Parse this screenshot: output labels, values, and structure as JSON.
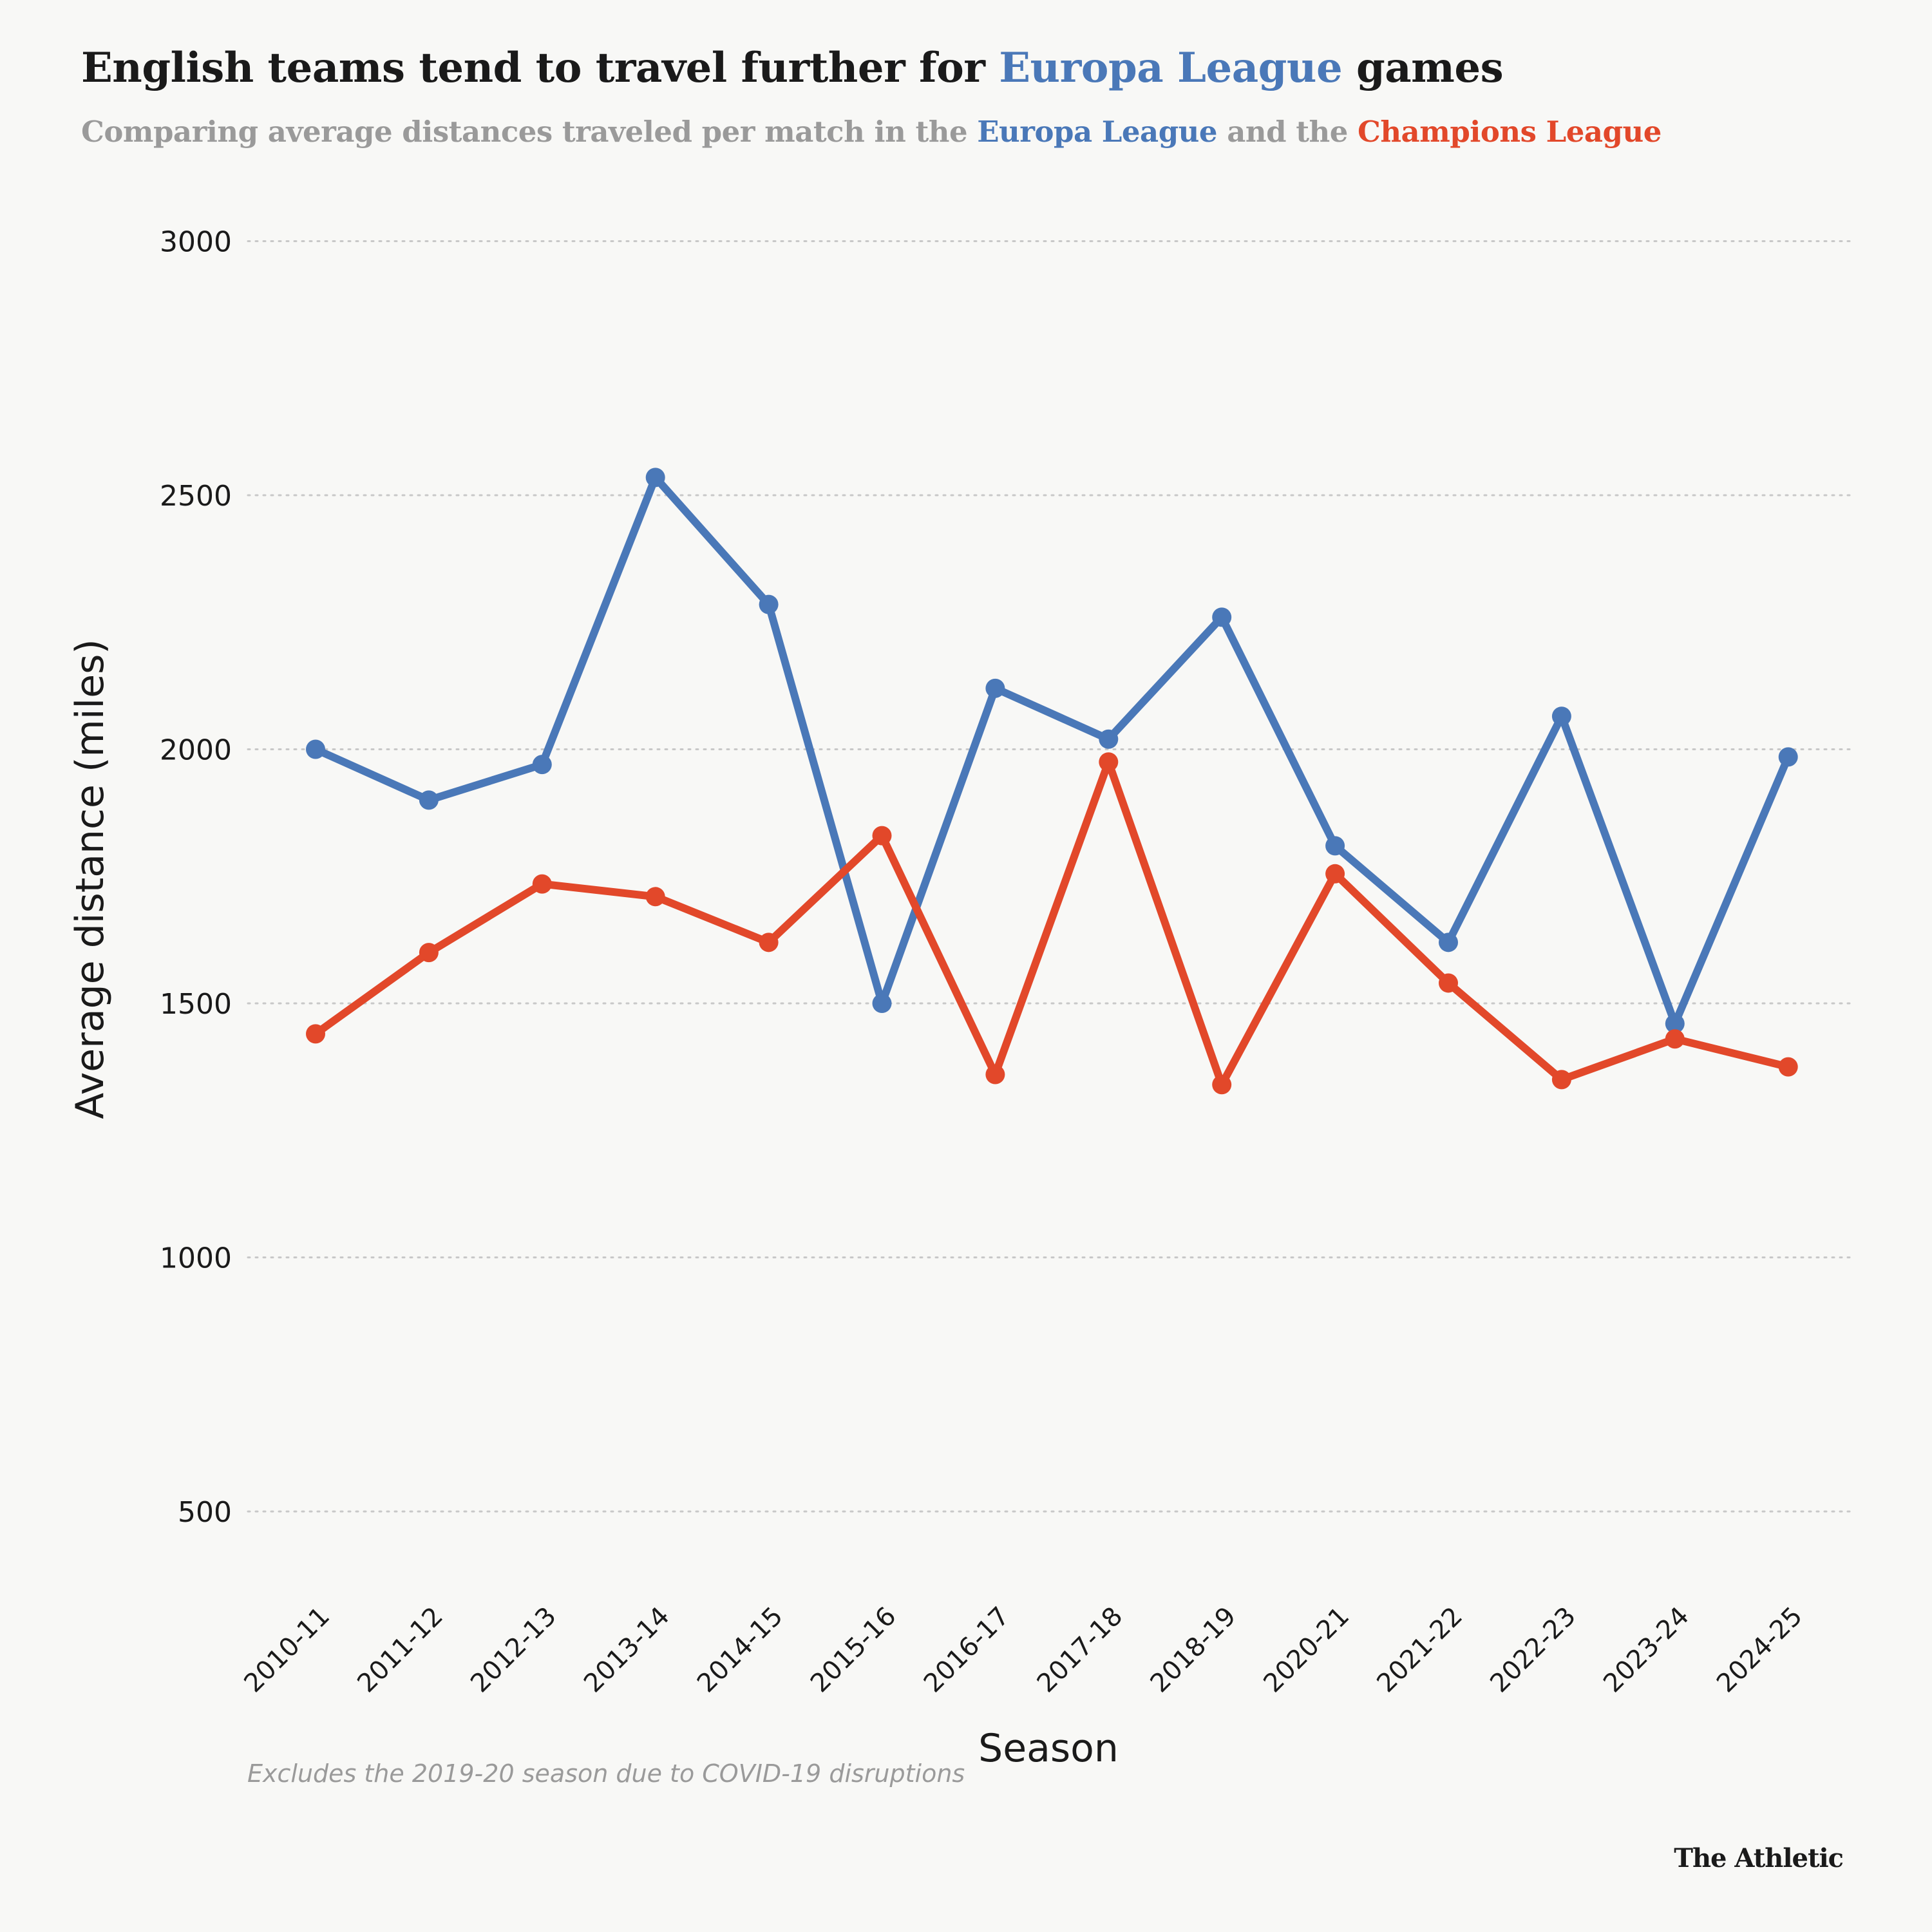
{
  "header": {
    "title_pre": "English teams tend to travel further for ",
    "title_highlight": "Europa League",
    "title_post": " games",
    "subtitle_pre": "Comparing average distances traveled per match in the ",
    "subtitle_el": "Europa League",
    "subtitle_mid": " and the ",
    "subtitle_cl": "Champions League"
  },
  "footnote": "Excludes the 2019-20 season due to COVID-19 disruptions",
  "brand": "The Athletic",
  "colors": {
    "europa": "#4a78b8",
    "champions": "#e2482a",
    "grid": "#c8c8c8",
    "background": "#f8f8f6"
  },
  "chart_data": {
    "type": "line",
    "title": "English teams tend to travel further for Europa League games",
    "subtitle": "Comparing average distances traveled per match in the Europa League and the Champions League",
    "xlabel": "Season",
    "ylabel": "Average distance (miles)",
    "categories": [
      "2010-11",
      "2011-12",
      "2012-13",
      "2013-14",
      "2014-15",
      "2015-16",
      "2016-17",
      "2017-18",
      "2018-19",
      "2020-21",
      "2021-22",
      "2022-23",
      "2023-24",
      "2024-25"
    ],
    "yticks": [
      500,
      1000,
      1500,
      2000,
      2500,
      3000
    ],
    "ylim": [
      300,
      3000
    ],
    "grid": "horizontal dotted",
    "series": [
      {
        "name": "Europa League",
        "color": "#4a78b8",
        "values": [
          2000,
          1900,
          1970,
          2535,
          2285,
          1500,
          2120,
          2020,
          2260,
          1810,
          1620,
          2065,
          1460,
          1985
        ]
      },
      {
        "name": "Champions League",
        "color": "#e2482a",
        "values": [
          1440,
          1600,
          1735,
          1710,
          1620,
          1830,
          1360,
          1975,
          1340,
          1755,
          1540,
          1350,
          1430,
          1375
        ]
      }
    ]
  }
}
